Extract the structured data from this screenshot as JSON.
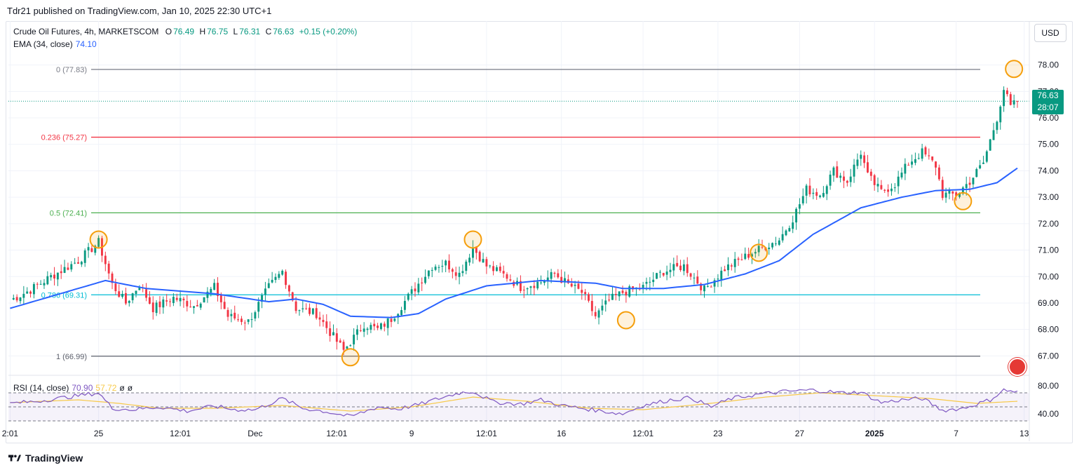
{
  "header": {
    "published": "Tdr21 published on TradingView.com, Jan 10, 2025 22:30 UTC+1"
  },
  "legend": {
    "symbol": "Crude Oil Futures, 4h, MARKETSCOM",
    "o_label": "O",
    "o": "76.49",
    "h_label": "H",
    "h": "76.75",
    "l_label": "L",
    "l": "76.31",
    "c_label": "C",
    "c": "76.63",
    "change": "+0.15 (+0.20%)",
    "ema_label": "EMA (34, close)",
    "ema_value": "74.10"
  },
  "rsi_legend": {
    "label": "RSI (14, close)",
    "v1": "70.90",
    "v2": "57.72",
    "v3": "ø",
    "v4": "ø"
  },
  "currency_button": "USD",
  "last_price": {
    "price": "76.63",
    "countdown": "28:07"
  },
  "footer": {
    "brand": "TradingView"
  },
  "colors": {
    "up": "#089981",
    "down": "#f23645",
    "ema": "#2962ff",
    "rsi": "#7e57c2",
    "rsi_ma": "#f7c948",
    "marker": "#f59e0b"
  },
  "chart_data": {
    "type": "candlestick",
    "title": "Crude Oil Futures, 4h, MARKETSCOM",
    "ylim": [
      66.4,
      78.6
    ],
    "y_ticks": [
      "78.00",
      "77.00",
      "76.00",
      "75.00",
      "74.00",
      "73.00",
      "72.00",
      "71.00",
      "70.00",
      "69.00",
      "68.00",
      "67.00"
    ],
    "x_ticks": [
      "2:01",
      "25",
      "12:01",
      "Dec",
      "12:01",
      "9",
      "12:01",
      "16",
      "12:01",
      "23",
      "27",
      "2025",
      "7",
      "13"
    ],
    "fib_levels": [
      {
        "label": "0 (77.83)",
        "value": 77.83,
        "color": "#787b86"
      },
      {
        "label": "0.236 (75.27)",
        "value": 75.27,
        "color": "#f23645"
      },
      {
        "label": "0.5 (72.41)",
        "value": 72.41,
        "color": "#4caf50"
      },
      {
        "label": "0.786 (69.31)",
        "value": 69.31,
        "color": "#00bcd4"
      },
      {
        "label": "1 (66.99)",
        "value": 66.99,
        "color": "#5d606b"
      }
    ],
    "price_anchors": [
      [
        0,
        69.1
      ],
      [
        6,
        69.5
      ],
      [
        12,
        70.0
      ],
      [
        20,
        70.6
      ],
      [
        26,
        71.3
      ],
      [
        30,
        69.7
      ],
      [
        34,
        69.0
      ],
      [
        38,
        69.7
      ],
      [
        42,
        68.8
      ],
      [
        48,
        69.2
      ],
      [
        54,
        68.9
      ],
      [
        60,
        69.6
      ],
      [
        64,
        68.5
      ],
      [
        70,
        68.3
      ],
      [
        76,
        69.6
      ],
      [
        80,
        70.2
      ],
      [
        84,
        68.8
      ],
      [
        90,
        68.6
      ],
      [
        94,
        67.9
      ],
      [
        98,
        67.2
      ],
      [
        104,
        68.2
      ],
      [
        108,
        68.0
      ],
      [
        112,
        68.4
      ],
      [
        118,
        69.4
      ],
      [
        124,
        70.4
      ],
      [
        128,
        70.5
      ],
      [
        132,
        70.1
      ],
      [
        136,
        71.1
      ],
      [
        140,
        70.4
      ],
      [
        146,
        70.0
      ],
      [
        150,
        69.6
      ],
      [
        156,
        69.8
      ],
      [
        160,
        70.1
      ],
      [
        164,
        69.7
      ],
      [
        168,
        69.4
      ],
      [
        172,
        68.5
      ],
      [
        176,
        69.1
      ],
      [
        180,
        69.4
      ],
      [
        186,
        69.6
      ],
      [
        192,
        70.2
      ],
      [
        198,
        70.4
      ],
      [
        204,
        69.5
      ],
      [
        210,
        70.3
      ],
      [
        218,
        70.9
      ],
      [
        226,
        71.4
      ],
      [
        230,
        72.2
      ],
      [
        234,
        73.3
      ],
      [
        238,
        73.1
      ],
      [
        242,
        74.0
      ],
      [
        246,
        73.6
      ],
      [
        250,
        74.7
      ],
      [
        252,
        73.8
      ],
      [
        256,
        73.2
      ],
      [
        260,
        73.5
      ],
      [
        264,
        74.3
      ],
      [
        268,
        74.7
      ],
      [
        272,
        74.2
      ],
      [
        274,
        73.1
      ],
      [
        278,
        73.1
      ],
      [
        282,
        73.6
      ],
      [
        286,
        74.3
      ],
      [
        290,
        76.0
      ],
      [
        292,
        77.1
      ],
      [
        294,
        76.4
      ],
      [
        296,
        76.63
      ]
    ],
    "markers": [
      {
        "index": 26,
        "value": 71.4
      },
      {
        "index": 100,
        "value": 66.95
      },
      {
        "index": 136,
        "value": 71.4
      },
      {
        "index": 181,
        "value": 68.35
      },
      {
        "index": 220,
        "value": 70.9
      },
      {
        "index": 280,
        "value": 72.85
      },
      {
        "index": 295,
        "value": 77.85
      }
    ],
    "ema_anchors": [
      [
        0,
        68.8
      ],
      [
        20,
        69.55
      ],
      [
        28,
        69.85
      ],
      [
        40,
        69.55
      ],
      [
        60,
        69.35
      ],
      [
        76,
        69.05
      ],
      [
        84,
        69.15
      ],
      [
        92,
        68.95
      ],
      [
        100,
        68.5
      ],
      [
        112,
        68.45
      ],
      [
        120,
        68.6
      ],
      [
        128,
        69.15
      ],
      [
        140,
        69.65
      ],
      [
        156,
        69.85
      ],
      [
        172,
        69.75
      ],
      [
        180,
        69.55
      ],
      [
        192,
        69.55
      ],
      [
        204,
        69.7
      ],
      [
        216,
        70.1
      ],
      [
        226,
        70.6
      ],
      [
        236,
        71.6
      ],
      [
        250,
        72.6
      ],
      [
        262,
        73.0
      ],
      [
        272,
        73.25
      ],
      [
        282,
        73.3
      ],
      [
        290,
        73.55
      ],
      [
        296,
        74.1
      ]
    ],
    "rsi": {
      "ylim": [
        30,
        90
      ],
      "y_ticks": [
        "80.00",
        "40.00"
      ],
      "bands": [
        70,
        50,
        30
      ],
      "anchors": [
        [
          0,
          55
        ],
        [
          8,
          58
        ],
        [
          20,
          66
        ],
        [
          26,
          70
        ],
        [
          30,
          48
        ],
        [
          36,
          46
        ],
        [
          44,
          50
        ],
        [
          52,
          44
        ],
        [
          60,
          51
        ],
        [
          66,
          46
        ],
        [
          72,
          46
        ],
        [
          80,
          62
        ],
        [
          86,
          48
        ],
        [
          92,
          44
        ],
        [
          100,
          36
        ],
        [
          108,
          50
        ],
        [
          114,
          47
        ],
        [
          120,
          53
        ],
        [
          126,
          62
        ],
        [
          132,
          70
        ],
        [
          136,
          72
        ],
        [
          142,
          57
        ],
        [
          150,
          54
        ],
        [
          156,
          60
        ],
        [
          162,
          52
        ],
        [
          168,
          48
        ],
        [
          174,
          44
        ],
        [
          180,
          40
        ],
        [
          186,
          52
        ],
        [
          194,
          60
        ],
        [
          200,
          63
        ],
        [
          206,
          50
        ],
        [
          212,
          62
        ],
        [
          220,
          68
        ],
        [
          228,
          72
        ],
        [
          236,
          74
        ],
        [
          244,
          70
        ],
        [
          250,
          71
        ],
        [
          256,
          56
        ],
        [
          262,
          60
        ],
        [
          268,
          62
        ],
        [
          274,
          45
        ],
        [
          280,
          48
        ],
        [
          288,
          60
        ],
        [
          292,
          74
        ],
        [
          296,
          71
        ]
      ],
      "ma_anchors": [
        [
          0,
          56
        ],
        [
          20,
          60
        ],
        [
          32,
          55
        ],
        [
          44,
          48
        ],
        [
          60,
          48
        ],
        [
          80,
          52
        ],
        [
          100,
          44
        ],
        [
          118,
          50
        ],
        [
          136,
          64
        ],
        [
          152,
          58
        ],
        [
          170,
          48
        ],
        [
          186,
          46
        ],
        [
          204,
          54
        ],
        [
          222,
          64
        ],
        [
          238,
          70
        ],
        [
          254,
          66
        ],
        [
          270,
          62
        ],
        [
          284,
          55
        ],
        [
          296,
          58
        ]
      ]
    }
  }
}
